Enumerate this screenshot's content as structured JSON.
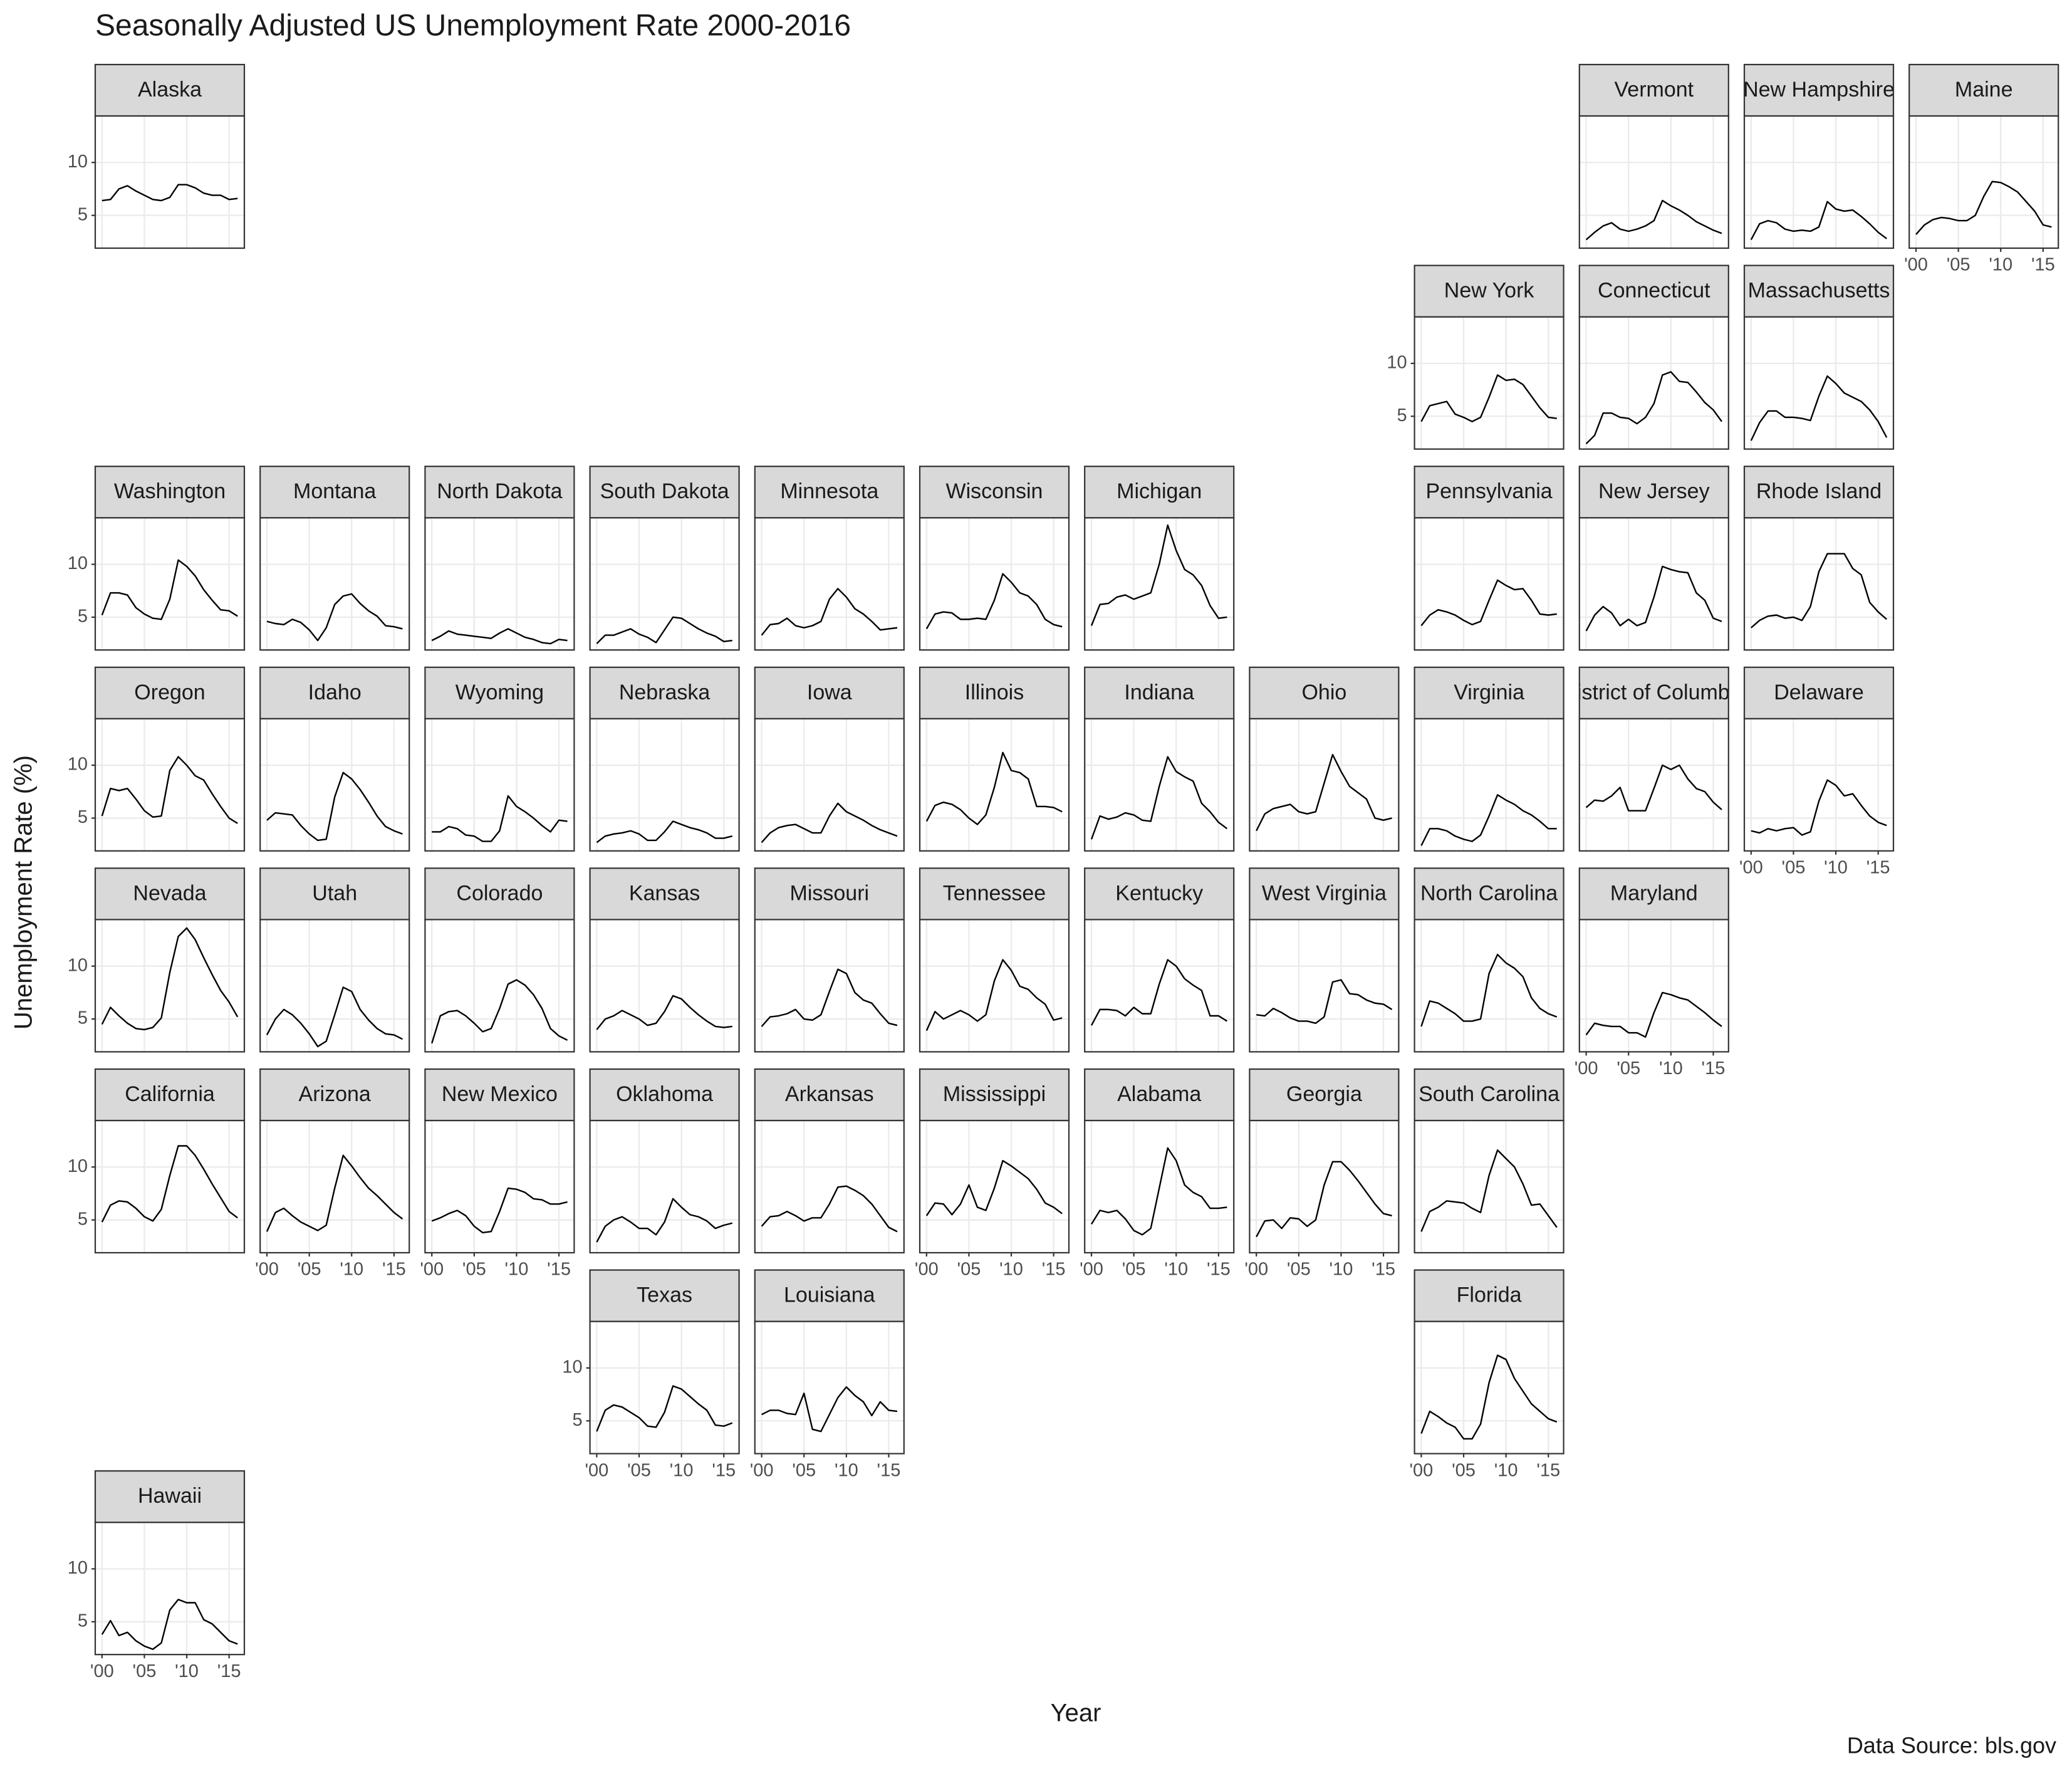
{
  "chart_data": {
    "type": "line",
    "title": "Seasonally Adjusted US Unemployment Rate 2000-2016",
    "x_label": "Year",
    "y_label": "Unemployment Rate (%)",
    "caption": "Data Source: bls.gov",
    "x": [
      2000,
      2001,
      2002,
      2003,
      2004,
      2005,
      2006,
      2007,
      2008,
      2009,
      2010,
      2011,
      2012,
      2013,
      2014,
      2015,
      2016
    ],
    "xlim": [
      1999.2,
      2016.8
    ],
    "xticks": [
      {
        "value": 2000,
        "label": "'00"
      },
      {
        "value": 2005,
        "label": "'05"
      },
      {
        "value": 2010,
        "label": "'10"
      },
      {
        "value": 2015,
        "label": "'15"
      }
    ],
    "ylim": [
      1.9,
      14.4
    ],
    "yticks": [
      5,
      10
    ],
    "grid": true,
    "color": "#000000",
    "series": [
      {
        "name": "Alaska",
        "values": [
          6.4,
          6.5,
          7.5,
          7.8,
          7.3,
          6.9,
          6.5,
          6.4,
          6.7,
          7.9,
          7.9,
          7.6,
          7.1,
          6.9,
          6.9,
          6.5,
          6.6
        ]
      },
      {
        "name": "Vermont",
        "values": [
          2.7,
          3.4,
          4.0,
          4.3,
          3.7,
          3.5,
          3.7,
          4.0,
          4.5,
          6.4,
          5.9,
          5.5,
          5.0,
          4.4,
          4.0,
          3.6,
          3.3
        ]
      },
      {
        "name": "New Hampshire",
        "values": [
          2.7,
          4.2,
          4.5,
          4.3,
          3.7,
          3.5,
          3.6,
          3.5,
          3.9,
          6.3,
          5.6,
          5.4,
          5.5,
          4.9,
          4.2,
          3.4,
          2.8
        ]
      },
      {
        "name": "Maine",
        "values": [
          3.2,
          4.1,
          4.6,
          4.8,
          4.7,
          4.5,
          4.5,
          5.0,
          6.8,
          8.2,
          8.1,
          7.7,
          7.2,
          6.3,
          5.4,
          4.1,
          3.9
        ]
      },
      {
        "name": "New York",
        "values": [
          4.5,
          6.0,
          6.2,
          6.4,
          5.2,
          4.9,
          4.5,
          4.9,
          6.8,
          8.9,
          8.4,
          8.5,
          8.0,
          6.9,
          5.8,
          4.9,
          4.8
        ]
      },
      {
        "name": "Connecticut",
        "values": [
          2.4,
          3.2,
          5.3,
          5.3,
          4.9,
          4.8,
          4.3,
          4.9,
          6.2,
          8.9,
          9.2,
          8.3,
          8.2,
          7.3,
          6.3,
          5.6,
          4.5
        ]
      },
      {
        "name": "Massachusetts",
        "values": [
          2.7,
          4.4,
          5.5,
          5.5,
          4.9,
          4.9,
          4.8,
          4.6,
          6.9,
          8.8,
          8.1,
          7.2,
          6.8,
          6.4,
          5.6,
          4.5,
          3.0
        ]
      },
      {
        "name": "Washington",
        "values": [
          5.2,
          7.3,
          7.3,
          7.1,
          5.9,
          5.3,
          4.9,
          4.8,
          6.7,
          10.4,
          9.8,
          8.9,
          7.6,
          6.6,
          5.7,
          5.6,
          5.1
        ]
      },
      {
        "name": "Montana",
        "values": [
          4.6,
          4.4,
          4.3,
          4.8,
          4.5,
          3.8,
          2.8,
          4.0,
          6.2,
          7.0,
          7.2,
          6.3,
          5.6,
          5.1,
          4.2,
          4.1,
          3.9
        ]
      },
      {
        "name": "North Dakota",
        "values": [
          2.8,
          3.2,
          3.7,
          3.4,
          3.3,
          3.2,
          3.1,
          3.0,
          3.5,
          3.9,
          3.5,
          3.1,
          2.9,
          2.6,
          2.5,
          2.9,
          2.8
        ]
      },
      {
        "name": "South Dakota",
        "values": [
          2.5,
          3.3,
          3.3,
          3.6,
          3.9,
          3.4,
          3.1,
          2.6,
          3.8,
          5.0,
          4.9,
          4.4,
          3.9,
          3.5,
          3.2,
          2.7,
          2.8
        ]
      },
      {
        "name": "Minnesota",
        "values": [
          3.3,
          4.3,
          4.4,
          4.9,
          4.2,
          4.0,
          4.2,
          4.6,
          6.7,
          7.7,
          6.9,
          5.8,
          5.3,
          4.6,
          3.8,
          3.9,
          4.0
        ]
      },
      {
        "name": "Wisconsin",
        "values": [
          3.9,
          5.3,
          5.5,
          5.4,
          4.8,
          4.8,
          4.9,
          4.8,
          6.6,
          9.1,
          8.3,
          7.3,
          7.0,
          6.2,
          4.8,
          4.3,
          4.1
        ]
      },
      {
        "name": "Michigan",
        "values": [
          4.2,
          6.2,
          6.3,
          6.9,
          7.1,
          6.7,
          7.0,
          7.3,
          10.0,
          13.7,
          11.3,
          9.5,
          9.0,
          8.0,
          6.1,
          4.9,
          5.0
        ]
      },
      {
        "name": "Pennsylvania",
        "values": [
          4.2,
          5.2,
          5.7,
          5.5,
          5.2,
          4.7,
          4.3,
          4.6,
          6.6,
          8.5,
          8.0,
          7.6,
          7.7,
          6.6,
          5.3,
          5.2,
          5.3
        ]
      },
      {
        "name": "New Jersey",
        "values": [
          3.7,
          5.2,
          6.0,
          5.4,
          4.2,
          4.8,
          4.2,
          4.5,
          6.9,
          9.8,
          9.5,
          9.3,
          9.2,
          7.3,
          6.6,
          4.9,
          4.6
        ]
      },
      {
        "name": "Rhode Island",
        "values": [
          4.0,
          4.7,
          5.1,
          5.2,
          4.9,
          5.0,
          4.7,
          6.0,
          9.3,
          11.0,
          11.0,
          11.0,
          9.6,
          9.0,
          6.4,
          5.5,
          4.8
        ]
      },
      {
        "name": "Oregon",
        "values": [
          5.2,
          7.8,
          7.6,
          7.8,
          6.8,
          5.7,
          5.1,
          5.2,
          9.5,
          10.8,
          10.0,
          9.0,
          8.6,
          7.3,
          6.1,
          5.0,
          4.5
        ]
      },
      {
        "name": "Idaho",
        "values": [
          4.8,
          5.5,
          5.4,
          5.3,
          4.3,
          3.5,
          2.9,
          3.0,
          7.0,
          9.3,
          8.7,
          7.7,
          6.5,
          5.2,
          4.2,
          3.8,
          3.5
        ]
      },
      {
        "name": "Wyoming",
        "values": [
          3.7,
          3.7,
          4.2,
          4.0,
          3.4,
          3.3,
          2.8,
          2.8,
          3.8,
          7.1,
          6.1,
          5.6,
          5.0,
          4.3,
          3.7,
          4.8,
          4.7
        ]
      },
      {
        "name": "Nebraska",
        "values": [
          2.7,
          3.3,
          3.5,
          3.6,
          3.8,
          3.5,
          2.9,
          2.9,
          3.7,
          4.7,
          4.4,
          4.1,
          3.9,
          3.6,
          3.1,
          3.1,
          3.3
        ]
      },
      {
        "name": "Iowa",
        "values": [
          2.7,
          3.6,
          4.1,
          4.3,
          4.4,
          4.0,
          3.6,
          3.6,
          5.2,
          6.4,
          5.6,
          5.2,
          4.8,
          4.3,
          3.9,
          3.6,
          3.3
        ]
      },
      {
        "name": "Illinois",
        "values": [
          4.7,
          6.2,
          6.5,
          6.3,
          5.8,
          5.0,
          4.4,
          5.3,
          7.9,
          11.2,
          9.5,
          9.3,
          8.7,
          6.1,
          6.1,
          6.0,
          5.6
        ]
      },
      {
        "name": "Indiana",
        "values": [
          3.0,
          5.2,
          4.9,
          5.1,
          5.5,
          5.3,
          4.8,
          4.7,
          8.0,
          10.8,
          9.4,
          8.9,
          8.5,
          6.4,
          5.6,
          4.6,
          4.0
        ]
      },
      {
        "name": "Ohio",
        "values": [
          3.8,
          5.4,
          5.9,
          6.1,
          6.3,
          5.6,
          5.4,
          5.6,
          8.3,
          11.0,
          9.4,
          8.0,
          7.4,
          6.8,
          5.0,
          4.8,
          5.0
        ]
      },
      {
        "name": "Virginia",
        "values": [
          2.4,
          4.0,
          4.0,
          3.8,
          3.3,
          3.0,
          2.8,
          3.4,
          5.2,
          7.2,
          6.7,
          6.3,
          5.7,
          5.3,
          4.7,
          4.0,
          4.0
        ]
      },
      {
        "name": "District of Columbia",
        "values": [
          6.0,
          6.7,
          6.6,
          7.1,
          7.9,
          5.7,
          5.7,
          5.7,
          7.8,
          10.0,
          9.6,
          10.0,
          8.7,
          7.8,
          7.5,
          6.5,
          5.8
        ]
      },
      {
        "name": "Delaware",
        "values": [
          3.8,
          3.6,
          4.0,
          3.8,
          4.0,
          4.1,
          3.4,
          3.7,
          6.6,
          8.6,
          8.1,
          7.1,
          7.3,
          6.2,
          5.2,
          4.6,
          4.3
        ]
      },
      {
        "name": "Nevada",
        "values": [
          4.5,
          6.1,
          5.3,
          4.6,
          4.1,
          4.0,
          4.2,
          5.1,
          9.4,
          12.8,
          13.6,
          12.5,
          10.8,
          9.2,
          7.7,
          6.6,
          5.2
        ]
      },
      {
        "name": "Utah",
        "values": [
          3.5,
          5.0,
          5.9,
          5.4,
          4.6,
          3.6,
          2.4,
          2.9,
          5.4,
          8.0,
          7.6,
          5.9,
          4.9,
          4.1,
          3.6,
          3.5,
          3.1
        ]
      },
      {
        "name": "Colorado",
        "values": [
          2.7,
          5.3,
          5.7,
          5.8,
          5.3,
          4.6,
          3.8,
          4.1,
          6.0,
          8.3,
          8.7,
          8.2,
          7.3,
          6.0,
          4.1,
          3.4,
          3.0
        ]
      },
      {
        "name": "Kansas",
        "values": [
          4.0,
          5.0,
          5.3,
          5.8,
          5.4,
          5.0,
          4.4,
          4.6,
          5.7,
          7.2,
          6.9,
          6.1,
          5.4,
          4.8,
          4.3,
          4.2,
          4.3
        ]
      },
      {
        "name": "Missouri",
        "values": [
          4.3,
          5.2,
          5.3,
          5.5,
          5.9,
          5.0,
          4.9,
          5.4,
          7.6,
          9.7,
          9.3,
          7.5,
          6.8,
          6.5,
          5.5,
          4.6,
          4.4
        ]
      },
      {
        "name": "Tennessee",
        "values": [
          3.9,
          5.7,
          5.0,
          5.4,
          5.8,
          5.4,
          4.8,
          5.4,
          8.6,
          10.6,
          9.6,
          8.1,
          7.8,
          7.0,
          6.4,
          4.9,
          5.1
        ]
      },
      {
        "name": "Kentucky",
        "values": [
          4.4,
          5.9,
          5.9,
          5.8,
          5.3,
          6.1,
          5.5,
          5.5,
          8.3,
          10.6,
          10.0,
          8.8,
          8.2,
          7.7,
          5.3,
          5.3,
          4.8
        ]
      },
      {
        "name": "West Virginia",
        "values": [
          5.4,
          5.3,
          6.0,
          5.6,
          5.1,
          4.8,
          4.8,
          4.6,
          5.2,
          8.5,
          8.7,
          7.4,
          7.3,
          6.8,
          6.5,
          6.4,
          5.9
        ]
      },
      {
        "name": "North Carolina",
        "values": [
          4.3,
          6.7,
          6.5,
          6.0,
          5.5,
          4.8,
          4.8,
          5.0,
          9.3,
          11.1,
          10.3,
          9.8,
          9.0,
          7.0,
          6.0,
          5.5,
          5.2
        ]
      },
      {
        "name": "Maryland",
        "values": [
          3.5,
          4.6,
          4.4,
          4.3,
          4.3,
          3.7,
          3.7,
          3.3,
          5.6,
          7.5,
          7.3,
          7.0,
          6.8,
          6.2,
          5.6,
          4.9,
          4.3
        ]
      },
      {
        "name": "California",
        "values": [
          4.8,
          6.4,
          6.8,
          6.7,
          6.1,
          5.3,
          4.9,
          6.0,
          9.2,
          12.0,
          12.0,
          11.1,
          9.8,
          8.4,
          7.1,
          5.8,
          5.2
        ]
      },
      {
        "name": "Arizona",
        "values": [
          3.9,
          5.7,
          6.1,
          5.4,
          4.8,
          4.4,
          4.0,
          4.5,
          8.0,
          11.1,
          10.1,
          9.0,
          8.0,
          7.3,
          6.5,
          5.7,
          5.1
        ]
      },
      {
        "name": "New Mexico",
        "values": [
          4.9,
          5.2,
          5.6,
          5.9,
          5.4,
          4.4,
          3.8,
          3.9,
          5.8,
          8.0,
          7.9,
          7.6,
          7.0,
          6.9,
          6.5,
          6.5,
          6.7
        ]
      },
      {
        "name": "Oklahoma",
        "values": [
          2.9,
          4.4,
          5.0,
          5.3,
          4.8,
          4.2,
          4.2,
          3.6,
          4.8,
          7.0,
          6.2,
          5.5,
          5.3,
          4.9,
          4.2,
          4.5,
          4.7
        ]
      },
      {
        "name": "Arkansas",
        "values": [
          4.4,
          5.3,
          5.4,
          5.8,
          5.4,
          4.9,
          5.2,
          5.2,
          6.5,
          8.1,
          8.2,
          7.8,
          7.3,
          6.5,
          5.4,
          4.3,
          3.9
        ]
      },
      {
        "name": "Mississippi",
        "values": [
          5.4,
          6.6,
          6.5,
          5.5,
          6.5,
          8.3,
          6.2,
          5.9,
          8.0,
          10.6,
          10.1,
          9.5,
          8.9,
          7.9,
          6.6,
          6.2,
          5.6
        ]
      },
      {
        "name": "Alabama",
        "values": [
          4.6,
          5.9,
          5.7,
          5.9,
          5.1,
          4.0,
          3.6,
          4.2,
          8.0,
          11.8,
          10.6,
          8.3,
          7.6,
          7.2,
          6.1,
          6.1,
          6.2
        ]
      },
      {
        "name": "Georgia",
        "values": [
          3.4,
          4.9,
          5.0,
          4.2,
          5.2,
          5.1,
          4.4,
          5.0,
          8.3,
          10.5,
          10.5,
          9.7,
          8.7,
          7.6,
          6.5,
          5.6,
          5.4
        ]
      },
      {
        "name": "South Carolina",
        "values": [
          3.9,
          5.8,
          6.2,
          6.8,
          6.7,
          6.6,
          6.1,
          5.7,
          9.2,
          11.6,
          10.8,
          10.0,
          8.4,
          6.4,
          6.5,
          5.4,
          4.3
        ]
      },
      {
        "name": "Texas",
        "values": [
          4.0,
          6.0,
          6.5,
          6.3,
          5.8,
          5.3,
          4.5,
          4.4,
          5.8,
          8.3,
          8.0,
          7.3,
          6.6,
          6.0,
          4.6,
          4.5,
          4.8
        ]
      },
      {
        "name": "Louisiana",
        "values": [
          5.6,
          6.0,
          6.0,
          5.7,
          5.6,
          7.6,
          4.2,
          4.0,
          5.6,
          7.2,
          8.2,
          7.4,
          6.8,
          5.5,
          6.8,
          6.0,
          5.9
        ]
      },
      {
        "name": "Florida",
        "values": [
          3.8,
          5.9,
          5.4,
          4.8,
          4.4,
          3.3,
          3.3,
          4.7,
          8.6,
          11.2,
          10.8,
          9.0,
          7.8,
          6.6,
          5.9,
          5.2,
          4.9
        ]
      },
      {
        "name": "Hawaii",
        "values": [
          3.8,
          5.1,
          3.7,
          4.0,
          3.2,
          2.7,
          2.4,
          3.0,
          6.1,
          7.1,
          6.8,
          6.8,
          5.2,
          4.8,
          4.0,
          3.2,
          2.9
        ]
      }
    ]
  }
}
